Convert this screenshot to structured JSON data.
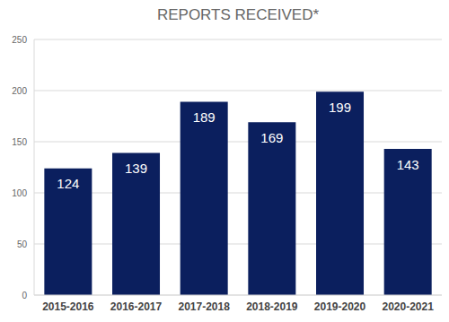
{
  "chart_data": {
    "type": "bar",
    "title": "REPORTS RECEIVED*",
    "categories": [
      "2015-2016",
      "2016-2017",
      "2017-2018",
      "2018-2019",
      "2019-2020",
      "2020-2021"
    ],
    "values": [
      124,
      139,
      189,
      169,
      199,
      143
    ],
    "color": "#0b1f5e",
    "ylim": [
      0,
      250
    ],
    "yticks": [
      0,
      50,
      100,
      150,
      200,
      250
    ],
    "grid": true,
    "data_labels": true
  }
}
